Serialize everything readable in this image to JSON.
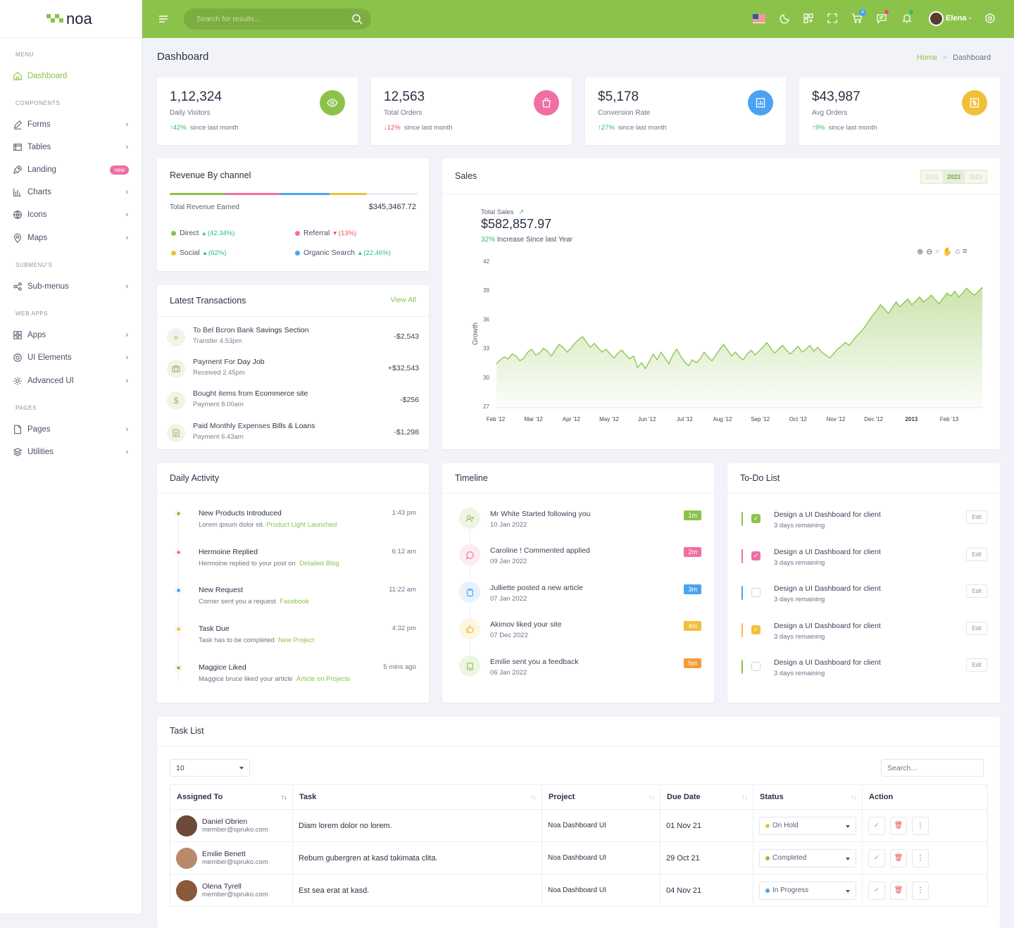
{
  "brand": {
    "name": "noa",
    "color": "#8bc34a"
  },
  "sidebar": {
    "sections": [
      "MENU",
      "COMPONENTS",
      "SUBMENU'S",
      "WEB APPS",
      "PAGES"
    ],
    "items": [
      {
        "label": "Dashboard",
        "icon": "home-icon"
      },
      {
        "label": "Forms",
        "icon": "edit-icon"
      },
      {
        "label": "Tables",
        "icon": "table-icon"
      },
      {
        "label": "Landing",
        "icon": "rocket-icon",
        "badge": "new"
      },
      {
        "label": "Charts",
        "icon": "bar-chart-icon"
      },
      {
        "label": "Icons",
        "icon": "globe-icon"
      },
      {
        "label": "Maps",
        "icon": "map-pin-icon"
      },
      {
        "label": "Sub-menus",
        "icon": "share-icon"
      },
      {
        "label": "Apps",
        "icon": "grid-icon"
      },
      {
        "label": "UI Elements",
        "icon": "puzzle-icon"
      },
      {
        "label": "Advanced UI",
        "icon": "gear-icon"
      },
      {
        "label": "Pages",
        "icon": "file-icon"
      },
      {
        "label": "Utilities",
        "icon": "layers-icon"
      }
    ]
  },
  "header": {
    "search_placeholder": "Search for results...",
    "user": "Elena",
    "cart_count": "4"
  },
  "page": {
    "title": "Dashboard",
    "breadcrumb": [
      "Home",
      "Dashboard"
    ]
  },
  "stats": [
    {
      "value": "1,12,324",
      "label": "Daily Visitors",
      "change": "42%",
      "dir": "up",
      "since": "since last month",
      "color": "#8bc34a"
    },
    {
      "value": "12,563",
      "label": "Total Orders",
      "change": "12%",
      "dir": "down",
      "since": "since last month",
      "color": "#ef6fa4"
    },
    {
      "value": "$5,178",
      "label": "Conversion Rate",
      "change": "27%",
      "dir": "up",
      "since": "since last month",
      "color": "#4aa3f0"
    },
    {
      "value": "$43,987",
      "label": "Avg Orders",
      "change": "9%",
      "dir": "up",
      "since": "since last month",
      "color": "#f0c03a"
    }
  ],
  "revenue": {
    "title": "Revenue By channel",
    "total_label": "Total Revenue Earned",
    "total_value": "$345,3467.72",
    "channels": [
      {
        "name": "Direct",
        "pct": "(42.34%)",
        "dir": "up",
        "color": "#8bc34a"
      },
      {
        "name": "Referral",
        "pct": "(13%)",
        "dir": "down",
        "color": "#ef6fa4"
      },
      {
        "name": "Social",
        "pct": "(62%)",
        "dir": "up",
        "color": "#f0c03a"
      },
      {
        "name": "Organic Search",
        "pct": "(22.46%)",
        "dir": "up",
        "color": "#4aa3f0"
      }
    ]
  },
  "transactions": {
    "title": "Latest Transactions",
    "view_all": "View All",
    "items": [
      {
        "text": "To Bel Bcron Bank",
        "strong": "Savings Section",
        "sub": "Transfer 4.53pm",
        "amount": "-$2,543"
      },
      {
        "text": "Payment For ",
        "strong": "Day Job",
        "sub": "Received 2.45pm",
        "amount": "+$32,543"
      },
      {
        "text": "Bought items from",
        "strong": "Ecommerce site",
        "sub": "Payment 8.00am",
        "amount": "-$256"
      },
      {
        "text": "Paid Monthly Expenses",
        "strong": "Bills & Loans",
        "sub": "Payment 6.43am",
        "amount": "-$1,298"
      }
    ]
  },
  "sales": {
    "title": "Sales",
    "years": [
      "2021",
      "2022",
      "2023"
    ],
    "total_label": "Total Sales",
    "total_value": "$582,857.97",
    "increase_pct": "32%",
    "increase_text": "Increase Since last Year"
  },
  "chart_data": {
    "type": "area",
    "ylabel": "Growth",
    "ylim": [
      27,
      42
    ],
    "yticks": [
      "42",
      "39",
      "36",
      "33",
      "30",
      "27"
    ],
    "xticks": [
      "Feb '12",
      "Mar '12",
      "Apr '12",
      "May '12",
      "Jun '12",
      "Jul '12",
      "Aug '12",
      "Sep '12",
      "Oct '12",
      "Nov '12",
      "Dec '12",
      "2013",
      "Feb '13"
    ],
    "color": "#8bc34a",
    "values": [
      31.4,
      31.8,
      32.1,
      31.9,
      32.4,
      32.2,
      31.7,
      32.0,
      32.6,
      32.9,
      32.3,
      32.5,
      33.0,
      32.7,
      32.2,
      32.8,
      33.4,
      33.1,
      32.6,
      33.0,
      33.5,
      33.9,
      34.2,
      33.6,
      33.1,
      33.5,
      33.0,
      32.6,
      32.9,
      32.4,
      32.0,
      32.5,
      32.8,
      32.3,
      31.9,
      32.2,
      31.0,
      31.5,
      30.9,
      31.6,
      32.4,
      31.8,
      32.6,
      32.0,
      31.4,
      32.3,
      32.9,
      32.2,
      31.6,
      31.2,
      31.8,
      31.5,
      31.9,
      32.6,
      32.1,
      31.7,
      32.3,
      32.9,
      33.4,
      32.8,
      32.2,
      32.6,
      32.1,
      31.8,
      32.4,
      32.8,
      32.3,
      32.7,
      33.1,
      33.6,
      33.0,
      32.5,
      32.9,
      33.3,
      32.8,
      32.4,
      32.8,
      33.2,
      32.6,
      32.9,
      33.3,
      32.7,
      33.1,
      32.6,
      32.3,
      32.0,
      32.4,
      32.9,
      33.2,
      33.6,
      33.3,
      33.8,
      34.3,
      34.7,
      35.2,
      35.8,
      36.4,
      36.9,
      37.5,
      37.1,
      36.6,
      37.2,
      37.8,
      37.3,
      37.7,
      38.1,
      37.5,
      37.9,
      38.3,
      37.8,
      38.1,
      38.5,
      38.0,
      37.6,
      38.2,
      38.7,
      38.4,
      38.9,
      38.3,
      38.7,
      39.2,
      38.8,
      38.5,
      38.9,
      39.3
    ]
  },
  "activity": {
    "title": "Daily Activity",
    "items": [
      {
        "title": "New Products Introduced",
        "text": "Lorem ipsum dolor sit.",
        "link": "Product Light Launched",
        "time": "1:43 pm",
        "color": "#8bc34a"
      },
      {
        "title": "Hermoine Replied",
        "text": "Hermoine replied to your post on",
        "link": "Detailed Blog",
        "time": "6:12 am",
        "color": "#ef6fa4"
      },
      {
        "title": "New Request",
        "text": "Corner sent you a request",
        "link": "Facebook",
        "time": "11:22 am",
        "color": "#4aa3f0"
      },
      {
        "title": "Task Due",
        "text": "Task has to be completed",
        "link": "New Project",
        "time": "4:32 pm",
        "color": "#f0c03a"
      },
      {
        "title": "Maggice Liked",
        "text": "Maggice bruce liked your article",
        "link": "Article on Projects",
        "time": "5 mins ago",
        "color": "#8bc34a"
      }
    ]
  },
  "timeline": {
    "title": "Timeline",
    "items": [
      {
        "title": "Mr White Started following you",
        "date": "10 Jan 2022",
        "badge": "1m",
        "color": "#8bc34a",
        "bg": "#eef5e5",
        "icon": "user-plus-icon"
      },
      {
        "title": "Caroline ! Commented applied",
        "date": "09 Jan 2022",
        "badge": "2m",
        "color": "#ef6fa4",
        "bg": "#fdebf2",
        "icon": "comment-icon"
      },
      {
        "title": "Julliette posted a new article",
        "date": "07 Jan 2022",
        "badge": "3m",
        "color": "#4aa3f0",
        "bg": "#e7f2fd",
        "icon": "clipboard-icon"
      },
      {
        "title": "Akimov liked your site",
        "date": "07 Dec 2022",
        "badge": "4m",
        "color": "#f0c03a",
        "bg": "#fdf6e1",
        "icon": "thumbs-up-icon"
      },
      {
        "title": "Emilie sent you a feedback",
        "date": "06 Jan 2022",
        "badge": "5m",
        "color": "#f39c3a",
        "bg": "#eef5e5",
        "icon": "book-icon"
      }
    ]
  },
  "todo": {
    "title": "To-Do List",
    "edit_label": "Edit",
    "items": [
      {
        "title": "Design a UI Dashboard for client",
        "sub": "3 days remaining",
        "color": "#8bc34a",
        "checked": true
      },
      {
        "title": "Design a UI Dashboard for client",
        "sub": "3 days remaining",
        "color": "#ef6fa4",
        "checked": true
      },
      {
        "title": "Design a UI Dashboard for client",
        "sub": "3 days remaining",
        "color": "#4aa3f0",
        "checked": false
      },
      {
        "title": "Design a UI Dashboard for client",
        "sub": "3 days remaining",
        "color": "#f0c03a",
        "checked": true
      },
      {
        "title": "Design a UI Dashboard for client",
        "sub": "3 days remaining",
        "color": "#8bc34a",
        "checked": false
      }
    ]
  },
  "tasks": {
    "title": "Task List",
    "page_size": "10",
    "search_placeholder": "Search...",
    "columns": [
      "Assigned To",
      "Task",
      "Project",
      "Due Date",
      "Status",
      "Action"
    ],
    "rows": [
      {
        "name": "Daniel Obrien",
        "email": "member@spruko.com",
        "task": "Diam lorem dolor no lorem.",
        "project": "Noa Dashboard UI",
        "due": "01 Nov 21",
        "status": "On Hold",
        "status_color": "#f0c03a",
        "avatar": "#6b4a37"
      },
      {
        "name": "Emilie Benett",
        "email": "member@spruko.com",
        "task": "Rebum gubergren at kasd takimata clita.",
        "project": "Noa Dashboard UI",
        "due": "29 Oct 21",
        "status": "Completed",
        "status_color": "#8bc34a",
        "avatar": "#b88a6c"
      },
      {
        "name": "Olena Tyrell",
        "email": "member@spruko.com",
        "task": "Est sea erat at kasd.",
        "project": "Noa Dashboard UI",
        "due": "04 Nov 21",
        "status": "In Progress",
        "status_color": "#4aa3f0",
        "avatar": "#8a5a3b"
      }
    ]
  }
}
